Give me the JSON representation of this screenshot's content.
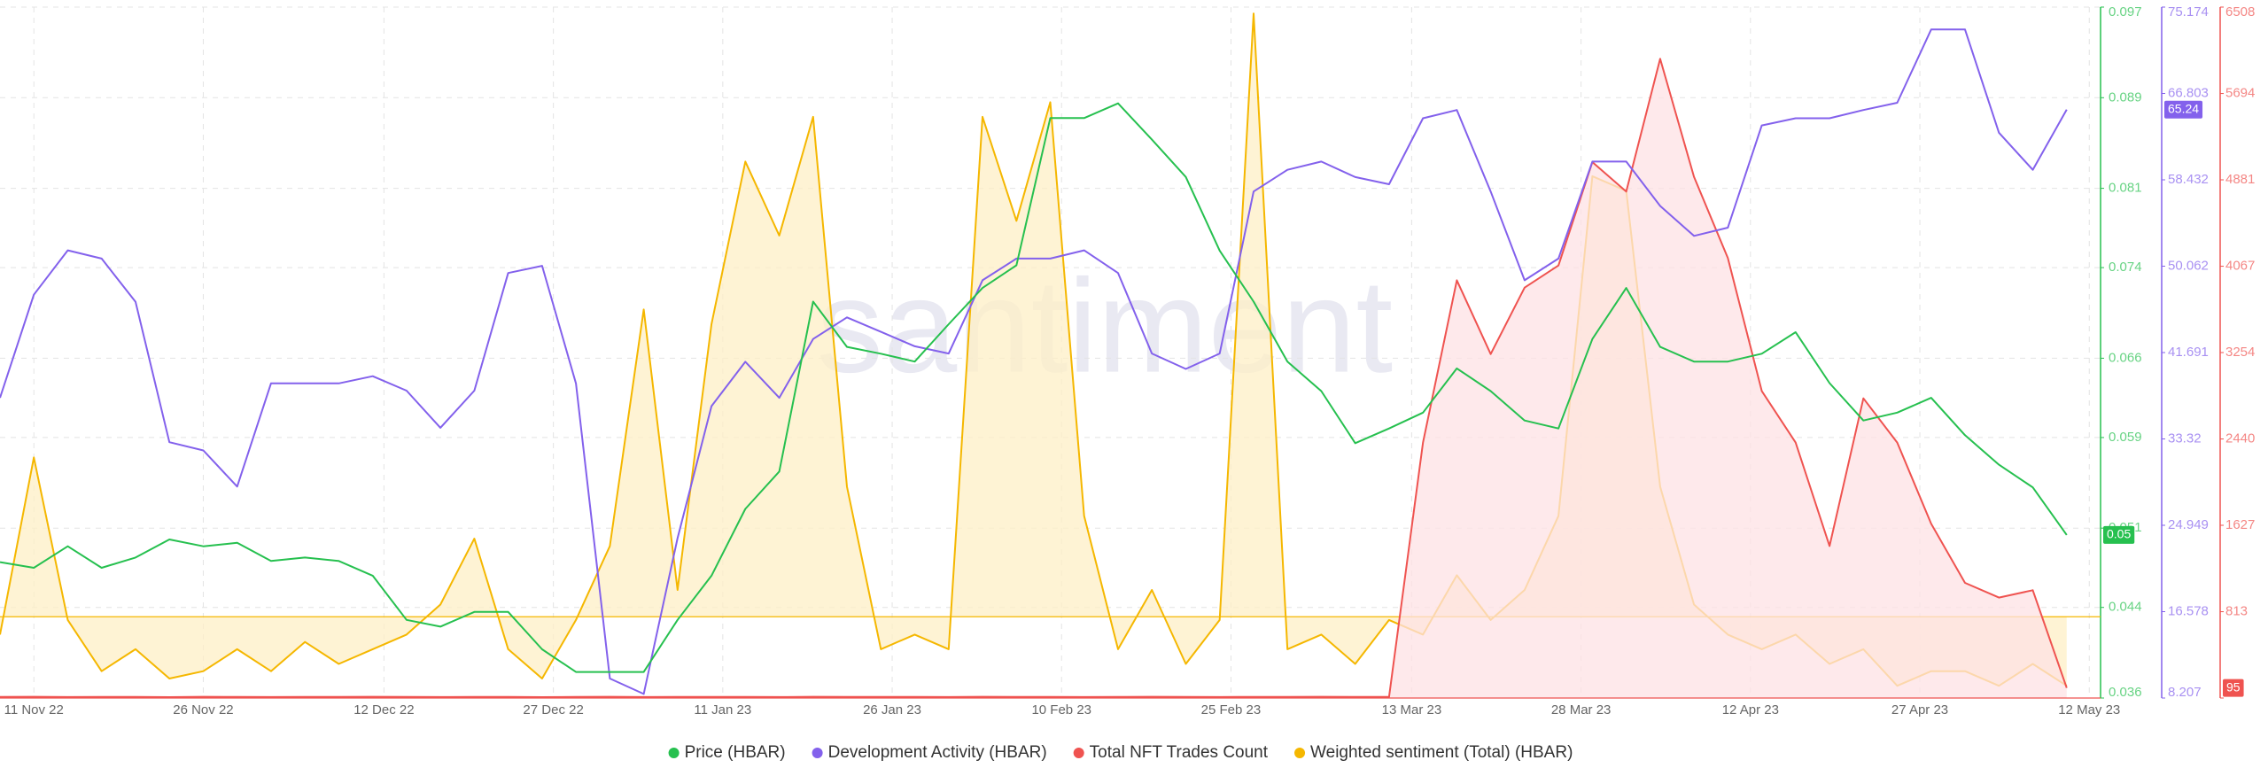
{
  "chart_data": {
    "type": "line",
    "watermark": "santiment",
    "x": [
      "2022-11-08",
      "2022-11-11",
      "2022-11-14",
      "2022-11-17",
      "2022-11-20",
      "2022-11-23",
      "2022-11-26",
      "2022-11-29",
      "2022-12-02",
      "2022-12-05",
      "2022-12-08",
      "2022-12-11",
      "2022-12-14",
      "2022-12-17",
      "2022-12-20",
      "2022-12-23",
      "2022-12-26",
      "2022-12-29",
      "2023-01-01",
      "2023-01-04",
      "2023-01-07",
      "2023-01-10",
      "2023-01-13",
      "2023-01-16",
      "2023-01-19",
      "2023-01-22",
      "2023-01-25",
      "2023-01-28",
      "2023-01-31",
      "2023-02-03",
      "2023-02-06",
      "2023-02-09",
      "2023-02-12",
      "2023-02-15",
      "2023-02-18",
      "2023-02-21",
      "2023-02-24",
      "2023-02-27",
      "2023-03-02",
      "2023-03-05",
      "2023-03-08",
      "2023-03-11",
      "2023-03-14",
      "2023-03-17",
      "2023-03-20",
      "2023-03-23",
      "2023-03-26",
      "2023-03-29",
      "2023-04-01",
      "2023-04-04",
      "2023-04-07",
      "2023-04-10",
      "2023-04-13",
      "2023-04-16",
      "2023-04-19",
      "2023-04-22",
      "2023-04-25",
      "2023-04-28",
      "2023-05-01",
      "2023-05-04",
      "2023-05-07",
      "2023-05-10"
    ],
    "xlim": [
      "2022-11-08",
      "2023-05-13"
    ],
    "xticks": [
      {
        "value": "2022-11-11",
        "label": "11 Nov 22"
      },
      {
        "value": "2022-11-26",
        "label": "26 Nov 22"
      },
      {
        "value": "2022-12-12",
        "label": "12 Dec 22"
      },
      {
        "value": "2022-12-27",
        "label": "27 Dec 22"
      },
      {
        "value": "2023-01-11",
        "label": "11 Jan 23"
      },
      {
        "value": "2023-01-26",
        "label": "26 Jan 23"
      },
      {
        "value": "2023-02-10",
        "label": "10 Feb 23"
      },
      {
        "value": "2023-02-25",
        "label": "25 Feb 23"
      },
      {
        "value": "2023-03-13",
        "label": "13 Mar 23"
      },
      {
        "value": "2023-03-28",
        "label": "28 Mar 23"
      },
      {
        "value": "2023-04-12",
        "label": "12 Apr 23"
      },
      {
        "value": "2023-04-27",
        "label": "27 Apr 23"
      },
      {
        "value": "2023-05-12",
        "label": "12 May 23"
      }
    ],
    "ylim": [
      0.036,
      0.097
    ],
    "yticks": [
      0.036,
      0.044,
      0.051,
      0.059,
      0.066,
      0.074,
      0.081,
      0.089,
      0.097
    ],
    "y2lim": [
      8.207,
      75.174
    ],
    "y2ticks": [
      8.207,
      16.578,
      24.949,
      33.32,
      41.691,
      50.062,
      58.432,
      66.803,
      75.174
    ],
    "y3lim": [
      0,
      6508
    ],
    "y3ticks": [
      0,
      813,
      1627,
      2440,
      3254,
      4067,
      4881,
      5694,
      6508
    ],
    "y4lim": [
      -1,
      7.5
    ],
    "grid": true,
    "legend": "bottom",
    "series": [
      {
        "name": "Price (HBAR)",
        "color": "#26c04f",
        "axis": "y",
        "values": [
          0.048,
          0.0475,
          0.0494,
          0.0475,
          0.0484,
          0.05,
          0.0494,
          0.0497,
          0.0481,
          0.0484,
          0.0481,
          0.0468,
          0.0429,
          0.0423,
          0.0436,
          0.0436,
          0.0403,
          0.0383,
          0.0383,
          0.0383,
          0.0429,
          0.0468,
          0.0527,
          0.056,
          0.071,
          0.067,
          0.0664,
          0.0657,
          0.069,
          0.0722,
          0.0742,
          0.0872,
          0.0872,
          0.0885,
          0.0853,
          0.082,
          0.0755,
          0.071,
          0.0657,
          0.0631,
          0.0585,
          0.0598,
          0.0612,
          0.0651,
          0.0631,
          0.0605,
          0.0598,
          0.0677,
          0.0722,
          0.067,
          0.0657,
          0.0657,
          0.0664,
          0.0683,
          0.0638,
          0.0605,
          0.0612,
          0.0625,
          0.0592,
          0.0566,
          0.0546,
          0.0504
        ],
        "value_labels": [
          null,
          null,
          null,
          null,
          null,
          null,
          null,
          null,
          null,
          null,
          null,
          null,
          null,
          null,
          null,
          null,
          null,
          null,
          null,
          null,
          null,
          null,
          null,
          null,
          null,
          null,
          null,
          null,
          null,
          null,
          null,
          null,
          null,
          null,
          null,
          null,
          null,
          null,
          null,
          null,
          null,
          null,
          null,
          null,
          null,
          null,
          null,
          null,
          null,
          null,
          null,
          null,
          null,
          null,
          null,
          null,
          null,
          null,
          null,
          null,
          null,
          "0.05"
        ]
      },
      {
        "name": "Development Activity (HBAR)",
        "color": "#8361ec",
        "axis": "y2",
        "values": [
          37.3,
          47.3,
          51.6,
          50.8,
          46.6,
          33.0,
          32.2,
          28.7,
          38.7,
          38.7,
          38.7,
          39.4,
          38.0,
          34.4,
          38.0,
          49.4,
          50.1,
          38.7,
          10.1,
          8.6,
          23.7,
          36.5,
          40.8,
          37.3,
          43.0,
          45.1,
          43.7,
          42.3,
          41.6,
          48.7,
          50.8,
          50.8,
          51.6,
          49.4,
          41.6,
          40.1,
          41.6,
          57.3,
          59.4,
          60.2,
          58.7,
          58.0,
          64.4,
          65.2,
          57.3,
          48.7,
          50.8,
          60.2,
          60.2,
          55.9,
          53.0,
          53.8,
          63.7,
          64.4,
          64.4,
          65.2,
          65.9,
          73.0,
          73.0,
          63.0,
          59.4,
          65.24
        ],
        "value_labels": [
          null,
          null,
          null,
          null,
          null,
          null,
          null,
          null,
          null,
          null,
          null,
          null,
          null,
          null,
          null,
          null,
          null,
          null,
          null,
          null,
          null,
          null,
          null,
          null,
          null,
          null,
          null,
          null,
          null,
          null,
          null,
          null,
          null,
          null,
          null,
          null,
          null,
          null,
          null,
          null,
          null,
          null,
          null,
          null,
          null,
          null,
          null,
          null,
          null,
          null,
          null,
          null,
          null,
          null,
          null,
          null,
          null,
          null,
          null,
          null,
          null,
          "65.24"
        ]
      },
      {
        "name": "Total NFT Trades Count",
        "color": "#ef5350",
        "fill": "#fde1e4",
        "axis": "y3",
        "values": [
          10,
          12,
          9,
          11,
          10,
          8,
          12,
          10,
          9,
          11,
          10,
          12,
          10,
          9,
          11,
          10,
          8,
          10,
          12,
          9,
          10,
          11,
          10,
          9,
          12,
          10,
          11,
          10,
          9,
          12,
          10,
          11,
          9,
          10,
          12,
          10,
          9,
          11,
          10,
          12,
          10,
          11,
          2406,
          3935,
          3240,
          3866,
          4074,
          5048,
          4770,
          6021,
          4909,
          4144,
          2892,
          2406,
          1432,
          2823,
          2406,
          1641,
          1085,
          946,
          1015,
          95
        ],
        "value_labels": [
          null,
          null,
          null,
          null,
          null,
          null,
          null,
          null,
          null,
          null,
          null,
          null,
          null,
          null,
          null,
          null,
          null,
          null,
          null,
          null,
          null,
          null,
          null,
          null,
          null,
          null,
          null,
          null,
          null,
          null,
          null,
          null,
          null,
          null,
          null,
          null,
          null,
          null,
          null,
          null,
          null,
          null,
          null,
          null,
          null,
          null,
          null,
          null,
          null,
          null,
          null,
          null,
          null,
          null,
          null,
          null,
          null,
          null,
          null,
          null,
          null,
          "95"
        ]
      },
      {
        "name": "Weighted sentiment (Total) (HBAR)",
        "color": "#f5b700",
        "fill": "#fdefc6",
        "axis": "y4",
        "values": [
          -0.22,
          1.96,
          -0.04,
          -0.67,
          -0.4,
          -0.76,
          -0.67,
          -0.4,
          -0.67,
          -0.31,
          -0.58,
          -0.4,
          -0.22,
          0.15,
          0.96,
          -0.4,
          -0.76,
          -0.04,
          0.87,
          3.78,
          0.33,
          3.6,
          5.6,
          4.69,
          6.15,
          1.6,
          -0.4,
          -0.22,
          -0.4,
          6.15,
          4.87,
          6.33,
          1.24,
          -0.4,
          0.33,
          -0.58,
          -0.04,
          7.42,
          -0.4,
          -0.22,
          -0.58,
          -0.04,
          -0.22,
          0.51,
          -0.04,
          0.33,
          1.24,
          5.42,
          5.24,
          1.6,
          0.15,
          -0.22,
          -0.4,
          -0.22,
          -0.58,
          -0.4,
          -0.85,
          -0.67,
          -0.67,
          -0.85,
          -0.58,
          -0.85
        ]
      }
    ]
  }
}
